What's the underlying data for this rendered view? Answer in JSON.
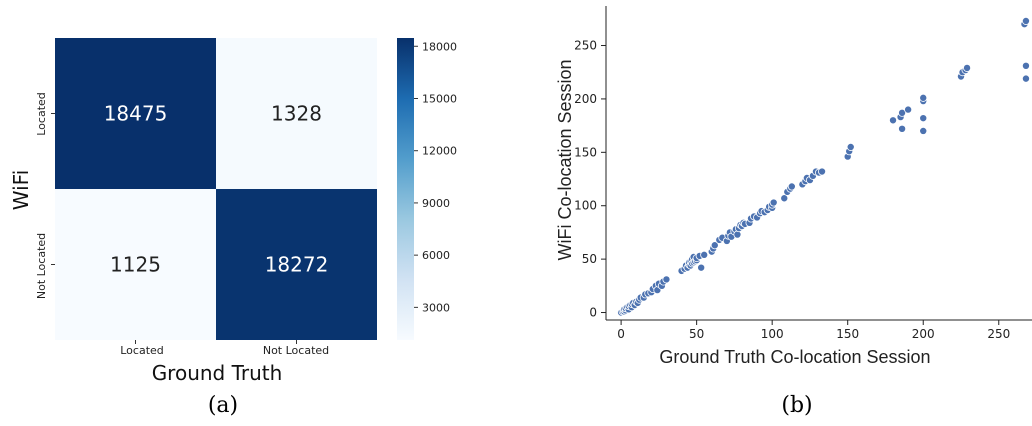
{
  "panels": {
    "a_label": "(a)",
    "b_label": "(b)"
  },
  "chart_data": [
    {
      "type": "heatmap",
      "xlabel": "Ground Truth",
      "ylabel": "WiFi",
      "x_categories": [
        "Located",
        "Not Located"
      ],
      "y_categories": [
        "Located",
        "Not Located"
      ],
      "values": [
        [
          18475,
          1328
        ],
        [
          1125,
          18272
        ]
      ],
      "colorbar": {
        "ticks": [
          3000,
          6000,
          9000,
          12000,
          15000,
          18000
        ],
        "min": 1125,
        "max": 18475,
        "colormap": "Blues"
      }
    },
    {
      "type": "scatter",
      "xlabel": "Ground Truth Co-location Session",
      "ylabel": "WiFi Co-location Session",
      "xlim": [
        -10,
        272
      ],
      "ylim": [
        -7,
        287
      ],
      "xticks": [
        0,
        50,
        100,
        150,
        200,
        250
      ],
      "yticks": [
        0,
        50,
        100,
        150,
        200,
        250
      ],
      "color": "#4c72b0",
      "points": [
        [
          0,
          0
        ],
        [
          1,
          1
        ],
        [
          2,
          1
        ],
        [
          2,
          3
        ],
        [
          3,
          2
        ],
        [
          3,
          4
        ],
        [
          4,
          5
        ],
        [
          5,
          3
        ],
        [
          5,
          6
        ],
        [
          6,
          7
        ],
        [
          7,
          5
        ],
        [
          7,
          8
        ],
        [
          8,
          9
        ],
        [
          9,
          7
        ],
        [
          10,
          10
        ],
        [
          11,
          9
        ],
        [
          12,
          12
        ],
        [
          13,
          14
        ],
        [
          15,
          14
        ],
        [
          16,
          17
        ],
        [
          18,
          18
        ],
        [
          20,
          19
        ],
        [
          21,
          22
        ],
        [
          23,
          25
        ],
        [
          24,
          21
        ],
        [
          25,
          27
        ],
        [
          27,
          25
        ],
        [
          28,
          29
        ],
        [
          30,
          31
        ],
        [
          40,
          39
        ],
        [
          42,
          41
        ],
        [
          43,
          44
        ],
        [
          44,
          42
        ],
        [
          45,
          45
        ],
        [
          45,
          47
        ],
        [
          46,
          44
        ],
        [
          46,
          48
        ],
        [
          47,
          46
        ],
        [
          47,
          50
        ],
        [
          48,
          47
        ],
        [
          48,
          52
        ],
        [
          49,
          48
        ],
        [
          50,
          49
        ],
        [
          50,
          51
        ],
        [
          52,
          53
        ],
        [
          53,
          42
        ],
        [
          55,
          54
        ],
        [
          60,
          57
        ],
        [
          61,
          60
        ],
        [
          62,
          63
        ],
        [
          65,
          68
        ],
        [
          67,
          70
        ],
        [
          70,
          67
        ],
        [
          71,
          72
        ],
        [
          72,
          75
        ],
        [
          73,
          71
        ],
        [
          75,
          76
        ],
        [
          76,
          78
        ],
        [
          77,
          73
        ],
        [
          78,
          79
        ],
        [
          79,
          82
        ],
        [
          80,
          81
        ],
        [
          81,
          84
        ],
        [
          82,
          83
        ],
        [
          85,
          84
        ],
        [
          86,
          88
        ],
        [
          88,
          90
        ],
        [
          90,
          89
        ],
        [
          92,
          93
        ],
        [
          93,
          95
        ],
        [
          95,
          94
        ],
        [
          97,
          96
        ],
        [
          98,
          99
        ],
        [
          100,
          98
        ],
        [
          100,
          101
        ],
        [
          101,
          103
        ],
        [
          108,
          107
        ],
        [
          110,
          113
        ],
        [
          112,
          116
        ],
        [
          113,
          118
        ],
        [
          120,
          120
        ],
        [
          122,
          123
        ],
        [
          123,
          126
        ],
        [
          125,
          124
        ],
        [
          127,
          128
        ],
        [
          129,
          132
        ],
        [
          131,
          131
        ],
        [
          133,
          132
        ],
        [
          150,
          146
        ],
        [
          151,
          151
        ],
        [
          152,
          155
        ],
        [
          180,
          180
        ],
        [
          185,
          183
        ],
        [
          186,
          172
        ],
        [
          186,
          187
        ],
        [
          190,
          190
        ],
        [
          200,
          198
        ],
        [
          200,
          201
        ],
        [
          200,
          182
        ],
        [
          200,
          170
        ],
        [
          225,
          221
        ],
        [
          226,
          225
        ],
        [
          228,
          227
        ],
        [
          229,
          229
        ],
        [
          267,
          270
        ],
        [
          268,
          273
        ],
        [
          268,
          231
        ],
        [
          268,
          219
        ]
      ]
    }
  ]
}
